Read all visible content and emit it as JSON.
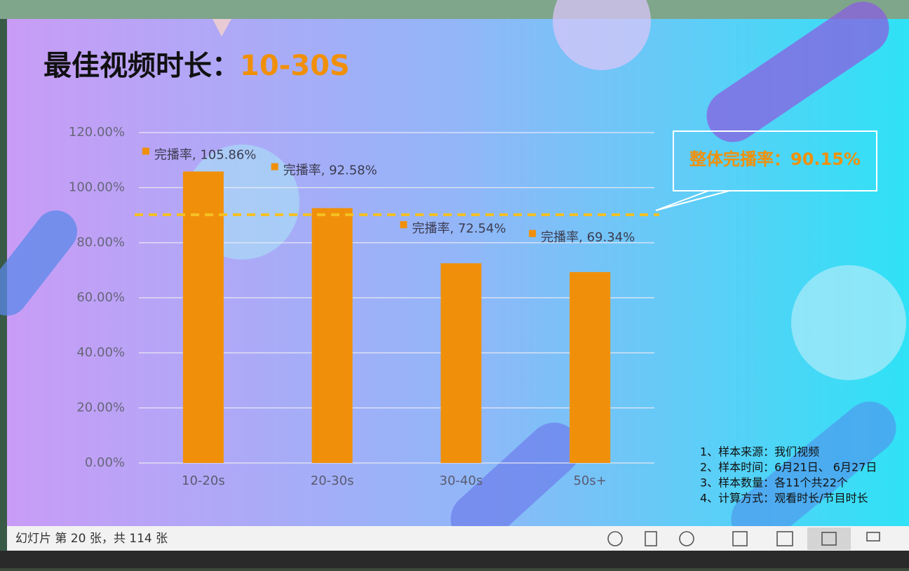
{
  "slide": {
    "title": "最佳视频时长：",
    "title_highlight": "10-30S",
    "notes": [
      "1、样本来源：我们视频",
      "2、样本时间：6月21日、 6月27日",
      "3、样本数量：各11个共22个",
      "4、计算方式：观看时长/节目时长"
    ]
  },
  "chart_data": {
    "type": "bar",
    "categories": [
      "10-20s",
      "20-30s",
      "30-40s",
      "50s+"
    ],
    "values": [
      105.86,
      92.58,
      72.54,
      69.34
    ],
    "value_labels": [
      "完播率, 105.86%",
      "完播率, 92.58%",
      "完播率, 72.54%",
      "完播率, 69.34%"
    ],
    "color": "#f0900a",
    "ylim": [
      0,
      120
    ],
    "yticks": [
      {
        "value": 0,
        "label": "0.00%"
      },
      {
        "value": 20,
        "label": "20.00%"
      },
      {
        "value": 40,
        "label": "40.00%"
      },
      {
        "value": 60,
        "label": "60.00%"
      },
      {
        "value": 80,
        "label": "80.00%"
      },
      {
        "value": 100,
        "label": "100.00%"
      },
      {
        "value": 120,
        "label": "120.00%"
      }
    ],
    "grid": true,
    "reference_line": {
      "value": 90.15,
      "label": "整体完播率：90.15%"
    }
  },
  "status_bar": {
    "slide_counter": "幻灯片 第 20 张，共 114 张"
  }
}
